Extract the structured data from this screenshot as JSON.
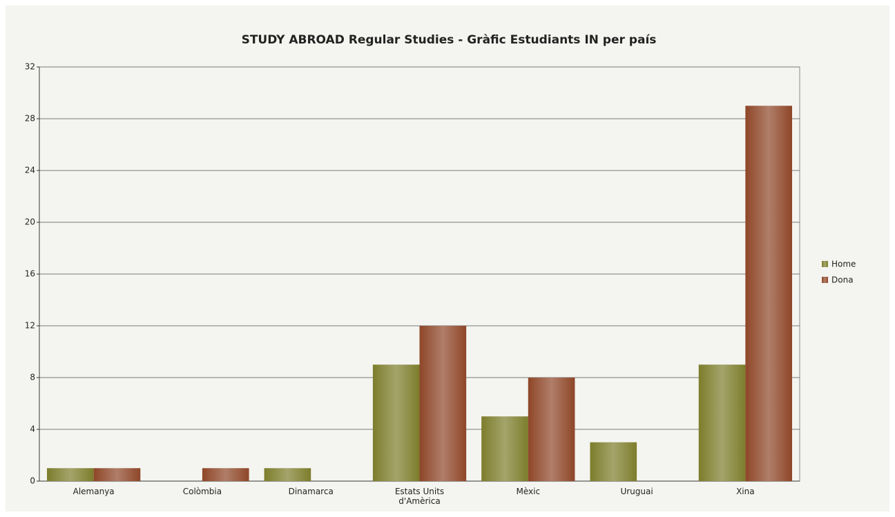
{
  "chart_data": {
    "type": "bar",
    "title": "STUDY ABROAD Regular Studies - Gràfic Estudiants IN per país",
    "categories": [
      "Alemanya",
      "Colòmbia",
      "Dinamarca",
      "Estats Units d'Amèrica",
      "Mèxic",
      "Uruguai",
      "Xina"
    ],
    "series": [
      {
        "name": "Home",
        "color": "#7d7d2c",
        "values": [
          1,
          0,
          1,
          9,
          5,
          3,
          9
        ]
      },
      {
        "name": "Dona",
        "color": "#8e4628",
        "values": [
          1,
          1,
          0,
          12,
          8,
          0,
          29
        ]
      }
    ],
    "ylim": [
      0,
      32
    ],
    "yticks": [
      0,
      4,
      8,
      12,
      16,
      20,
      24,
      28,
      32
    ],
    "grid": true,
    "legend": "right"
  }
}
